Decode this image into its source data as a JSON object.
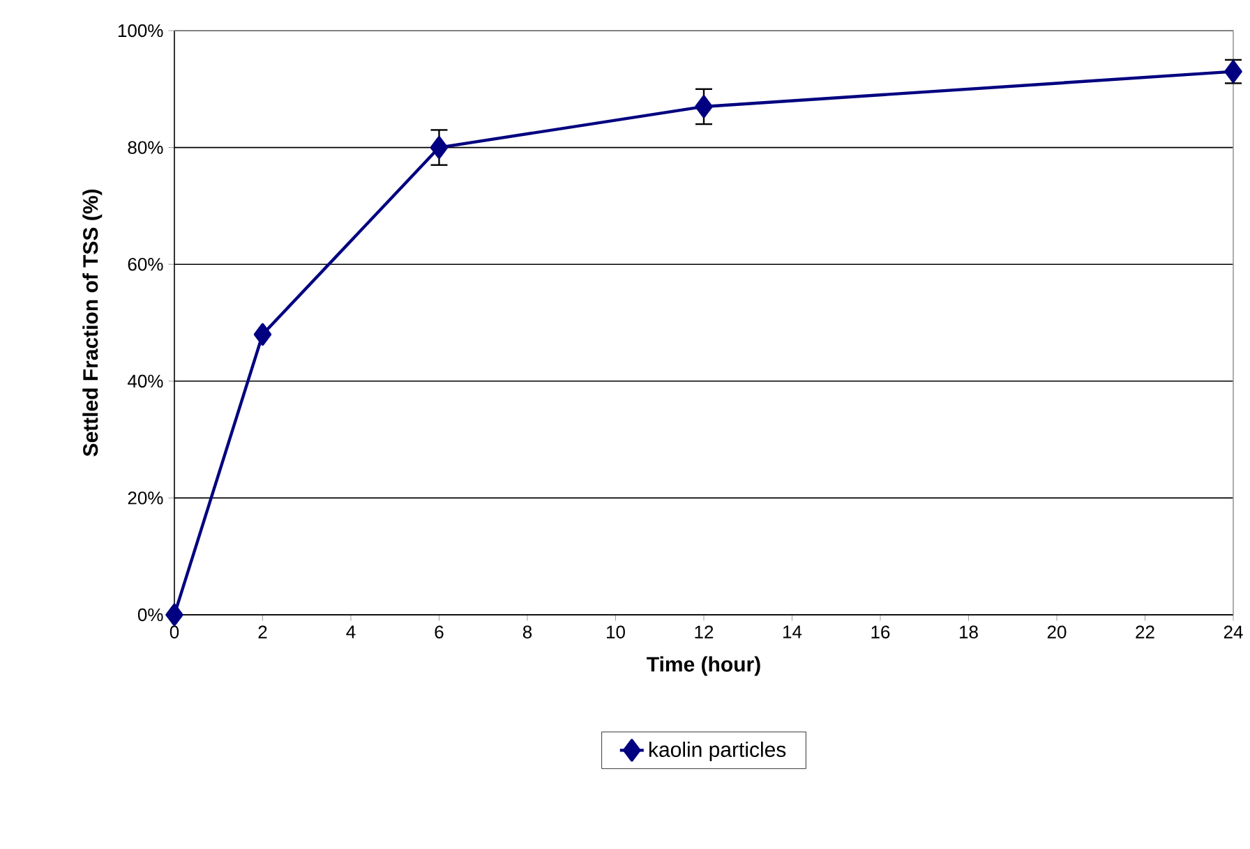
{
  "chart_data": {
    "type": "line",
    "xlabel": "Time (hour)",
    "ylabel": "Settled Fraction of TSS (%)",
    "x": [
      0,
      2,
      6,
      12,
      24
    ],
    "series": [
      {
        "name": "kaolin particles",
        "color": "#000080",
        "values": [
          0,
          48,
          80,
          87,
          93
        ],
        "errors": [
          null,
          null,
          3,
          3,
          2
        ]
      }
    ],
    "xlim": [
      0,
      24
    ],
    "xticks": [
      0,
      2,
      4,
      6,
      8,
      10,
      12,
      14,
      16,
      18,
      20,
      22,
      24
    ],
    "ylim": [
      0,
      100
    ],
    "yticks": [
      {
        "value": 0,
        "label": "0%"
      },
      {
        "value": 20,
        "label": "20%"
      },
      {
        "value": 40,
        "label": "40%"
      },
      {
        "value": 60,
        "label": "60%"
      },
      {
        "value": 80,
        "label": "80%"
      },
      {
        "value": 100,
        "label": "100%"
      }
    ],
    "grid": "y",
    "legend": "bottom",
    "marker": "diamond",
    "line_style": "solid"
  }
}
